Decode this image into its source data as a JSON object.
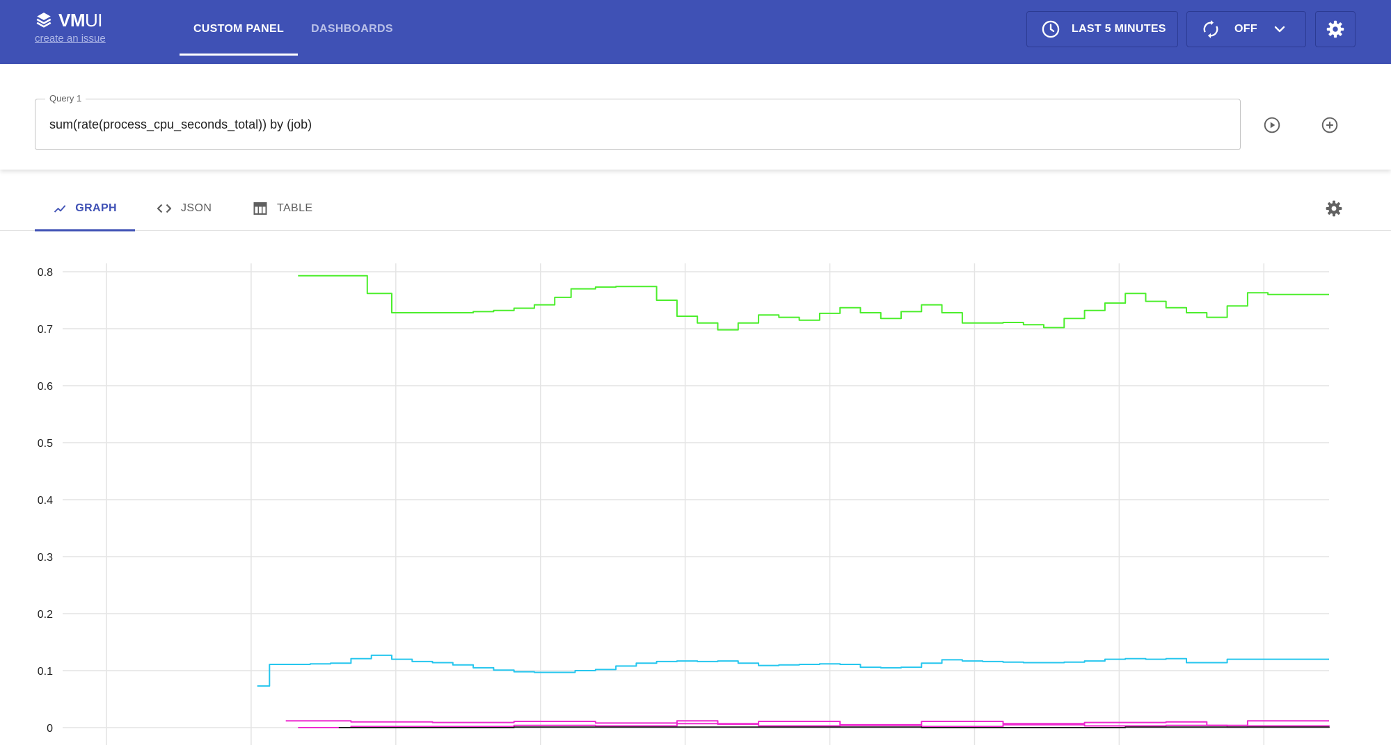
{
  "header": {
    "logo_bold": "VM",
    "logo_light": "UI",
    "issue_link": "create an issue",
    "nav_tabs": [
      {
        "label": "CUSTOM PANEL",
        "active": true
      },
      {
        "label": "DASHBOARDS",
        "active": false
      }
    ],
    "time_range_label": "LAST 5 MINUTES",
    "refresh_label": "OFF",
    "icons": [
      "layers-logo-icon",
      "clock-icon",
      "refresh-icon",
      "chevron-down-icon",
      "gear-icon"
    ]
  },
  "query": {
    "label": "Query 1",
    "value": "sum(rate(process_cpu_seconds_total)) by (job)",
    "icons": [
      "play-circle-icon",
      "add-circle-icon"
    ]
  },
  "result_tabs": [
    {
      "label": "GRAPH",
      "icon": "line-chart-icon",
      "active": true
    },
    {
      "label": "JSON",
      "icon": "code-icon",
      "active": false
    },
    {
      "label": "TABLE",
      "icon": "table-icon",
      "active": false
    }
  ],
  "colors": {
    "header": "#3f51b5",
    "accent": "#3f51b5",
    "series_green": "#4cee2c",
    "series_cyan": "#26c6ee",
    "series_magenta": "#ee2bd0",
    "series_black": "#212121"
  },
  "chart_data": {
    "type": "line",
    "title": "",
    "xlabel": "",
    "ylabel": "",
    "ylim": [
      0,
      0.8
    ],
    "y_ticks": [
      "0.8",
      "0.7",
      "0.6",
      "0.5",
      "0.4",
      "0.3",
      "0.2",
      "0.1",
      "0"
    ],
    "x_range": [
      0,
      300
    ],
    "x_grid_positions": [
      0,
      35.5,
      71,
      106.5,
      142,
      177.5,
      213,
      248.5,
      284
    ],
    "grid": true,
    "legend": "none",
    "series": [
      {
        "color": "#4cee2c",
        "x": [
          47,
          58,
          64,
          68,
          70,
          80,
          85,
          90,
          95,
          100,
          105,
          110,
          114,
          120,
          125,
          135,
          140,
          145,
          150,
          155,
          160,
          165,
          170,
          175,
          180,
          185,
          190,
          195,
          200,
          205,
          210,
          215,
          220,
          225,
          230,
          235,
          240,
          245,
          250,
          255,
          260,
          265,
          270,
          275,
          280,
          285,
          290,
          295,
          300
        ],
        "y": [
          0.793,
          0.793,
          0.762,
          0.762,
          0.728,
          0.728,
          0.728,
          0.73,
          0.732,
          0.736,
          0.742,
          0.755,
          0.77,
          0.773,
          0.774,
          0.75,
          0.722,
          0.71,
          0.698,
          0.71,
          0.724,
          0.72,
          0.715,
          0.727,
          0.737,
          0.728,
          0.718,
          0.73,
          0.742,
          0.728,
          0.71,
          0.71,
          0.711,
          0.707,
          0.702,
          0.718,
          0.732,
          0.745,
          0.762,
          0.748,
          0.737,
          0.728,
          0.72,
          0.74,
          0.763,
          0.76,
          0.76,
          0.76,
          0.76
        ]
      },
      {
        "color": "#26c6ee",
        "x": [
          37,
          38.5,
          40,
          45,
          50,
          55,
          60,
          65,
          70,
          75,
          80,
          85,
          90,
          95,
          100,
          105,
          110,
          115,
          120,
          125,
          130,
          135,
          140,
          145,
          150,
          155,
          160,
          165,
          170,
          175,
          180,
          185,
          190,
          195,
          200,
          205,
          210,
          215,
          220,
          225,
          230,
          235,
          240,
          245,
          250,
          255,
          260,
          265,
          270,
          275,
          280,
          285,
          290,
          295,
          300
        ],
        "y": [
          0.073,
          0.073,
          0.111,
          0.111,
          0.112,
          0.113,
          0.121,
          0.127,
          0.12,
          0.116,
          0.114,
          0.11,
          0.105,
          0.101,
          0.098,
          0.097,
          0.097,
          0.1,
          0.102,
          0.108,
          0.113,
          0.116,
          0.117,
          0.116,
          0.117,
          0.113,
          0.109,
          0.11,
          0.111,
          0.112,
          0.111,
          0.106,
          0.105,
          0.106,
          0.113,
          0.119,
          0.117,
          0.116,
          0.115,
          0.114,
          0.114,
          0.115,
          0.117,
          0.12,
          0.121,
          0.12,
          0.121,
          0.114,
          0.114,
          0.12,
          0.12,
          0.12,
          0.12,
          0.12,
          0.12
        ]
      },
      {
        "color": "#ee2bd0",
        "x": [
          44,
          60,
          80,
          100,
          120,
          140,
          150,
          160,
          180,
          200,
          220,
          240,
          260,
          270,
          280,
          300
        ],
        "y": [
          0.012,
          0.01,
          0.009,
          0.011,
          0.008,
          0.012,
          0.006,
          0.011,
          0.005,
          0.011,
          0.007,
          0.009,
          0.01,
          0.004,
          0.012,
          0.012
        ]
      },
      {
        "color": "#ee2bd0",
        "x": [
          47,
          55,
          60,
          80,
          100,
          120,
          140,
          160,
          180,
          200,
          220,
          240,
          260,
          270,
          275,
          280,
          300
        ],
        "y": [
          0,
          0,
          0.002,
          0.002,
          0.004,
          0.003,
          0.007,
          0.003,
          0.004,
          0.002,
          0.005,
          0.003,
          0.004,
          0.004,
          0.001,
          0.003,
          0.004
        ]
      },
      {
        "color": "#212121",
        "x": [
          57,
          100,
          150,
          200,
          250,
          300
        ],
        "y": [
          0,
          0.001,
          0.001,
          0,
          0.001,
          0
        ]
      }
    ]
  }
}
